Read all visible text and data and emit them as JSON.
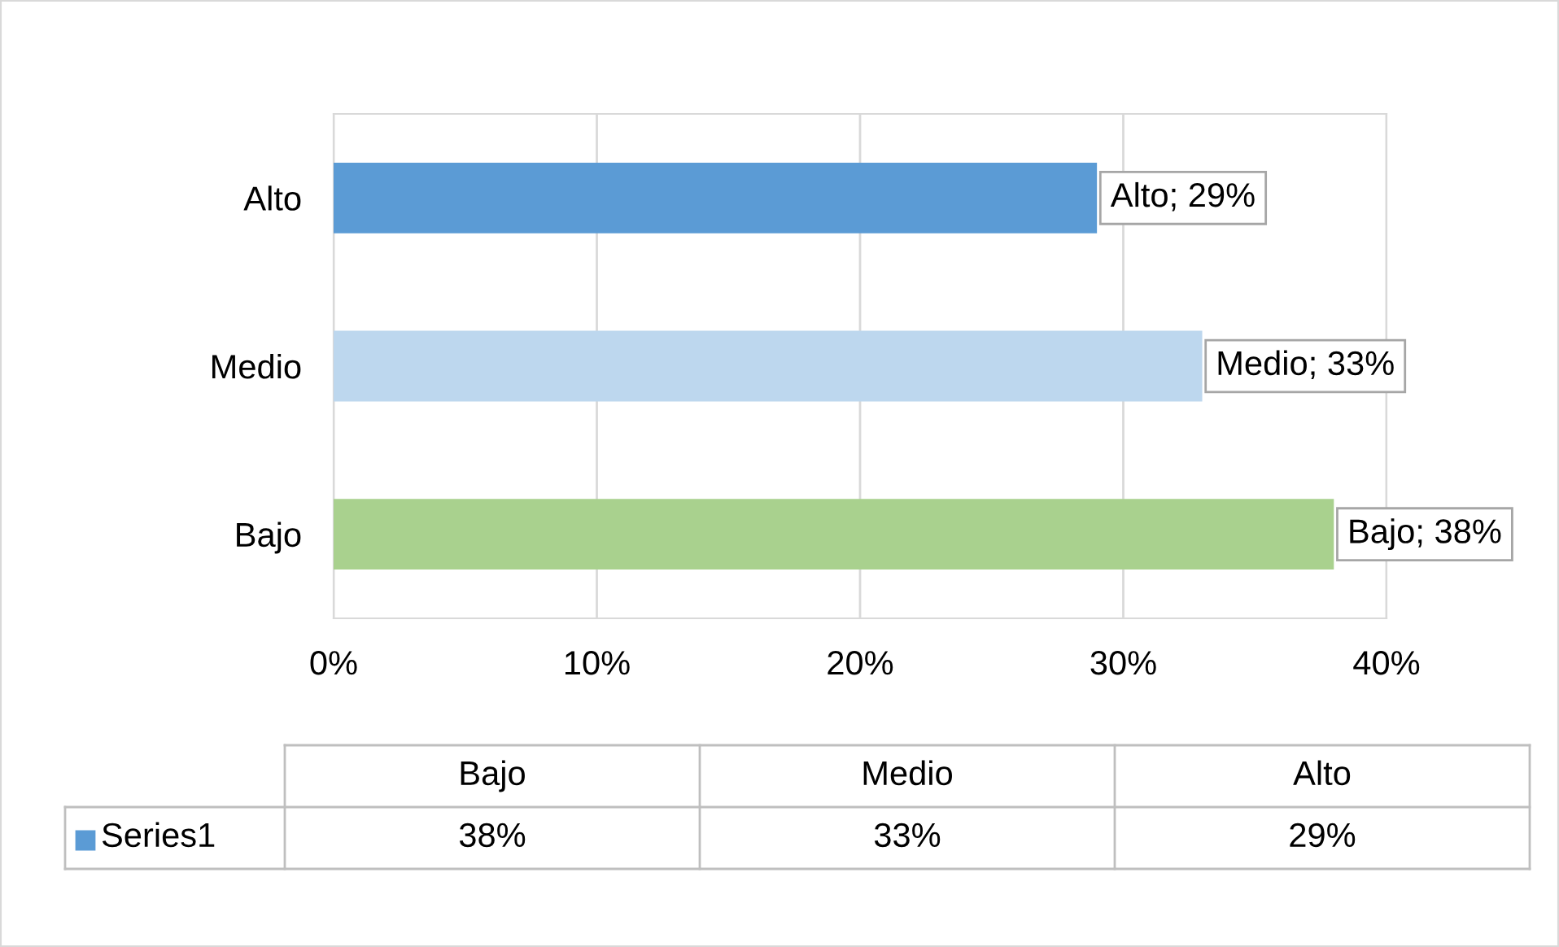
{
  "chart_data": {
    "type": "bar",
    "orientation": "horizontal",
    "categories": [
      "Alto",
      "Medio",
      "Bajo"
    ],
    "series": [
      {
        "name": "Series1",
        "color": "#5b9bd5",
        "values": [
          29,
          33,
          38
        ],
        "colors": [
          "#5b9bd5",
          "#bdd7ee",
          "#a9d18e"
        ],
        "value_labels": [
          "Alto; 29%",
          "Medio; 33%",
          "Bajo; 38%"
        ]
      }
    ],
    "xlim": [
      0,
      40
    ],
    "xticks": [
      {
        "value": 0,
        "label": "0%"
      },
      {
        "value": 10,
        "label": "10%"
      },
      {
        "value": 20,
        "label": "20%"
      },
      {
        "value": 30,
        "label": "30%"
      },
      {
        "value": 40,
        "label": "40%"
      }
    ],
    "grid": "x",
    "annotations": [
      "38%",
      "33%",
      "29%"
    ]
  }
}
